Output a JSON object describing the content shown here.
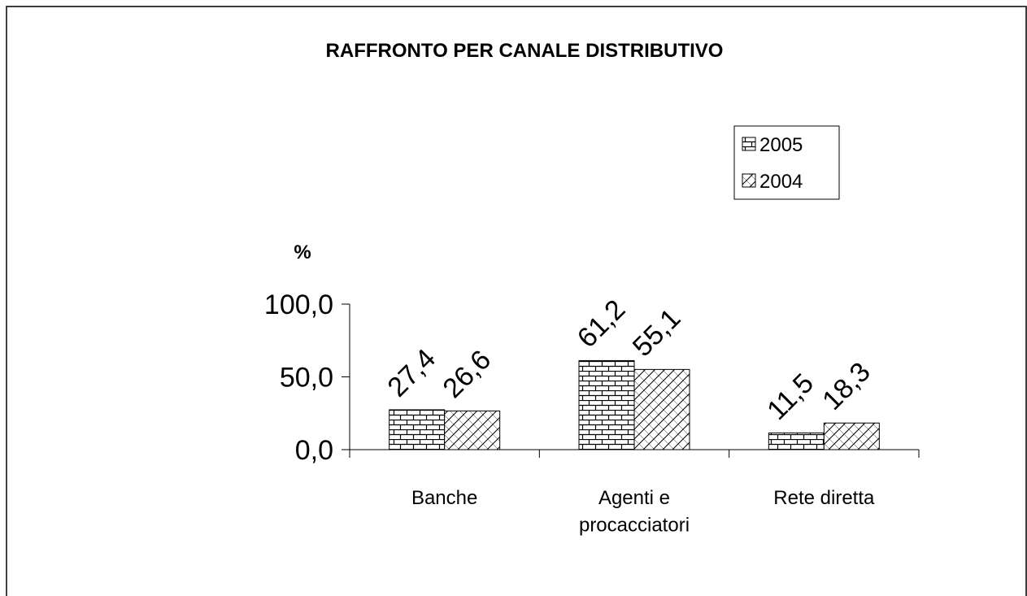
{
  "chart_data": {
    "type": "bar",
    "title": "RAFFRONTO PER CANALE DISTRIBUTIVO",
    "y_label": "%",
    "categories": [
      "Banche",
      "Agenti e\nprocacciatori",
      "Rete diretta"
    ],
    "series": [
      {
        "name": "2005",
        "color": "#000000",
        "pattern": "brick",
        "values": [
          27.4,
          61.2,
          11.5
        ],
        "value_labels": [
          "27,4",
          "61,2",
          "11,5"
        ]
      },
      {
        "name": "2004",
        "color": "#000000",
        "pattern": "diagonal-cross",
        "values": [
          26.6,
          55.1,
          18.3
        ],
        "value_labels": [
          "26,6",
          "55,1",
          "18,3"
        ]
      }
    ],
    "ylim": [
      0,
      100
    ],
    "yticks": [
      {
        "value": 0,
        "label": "0,0"
      },
      {
        "value": 50,
        "label": "50,0"
      },
      {
        "value": 100,
        "label": "100,0"
      }
    ],
    "grid": false,
    "legend": "upper-right"
  }
}
